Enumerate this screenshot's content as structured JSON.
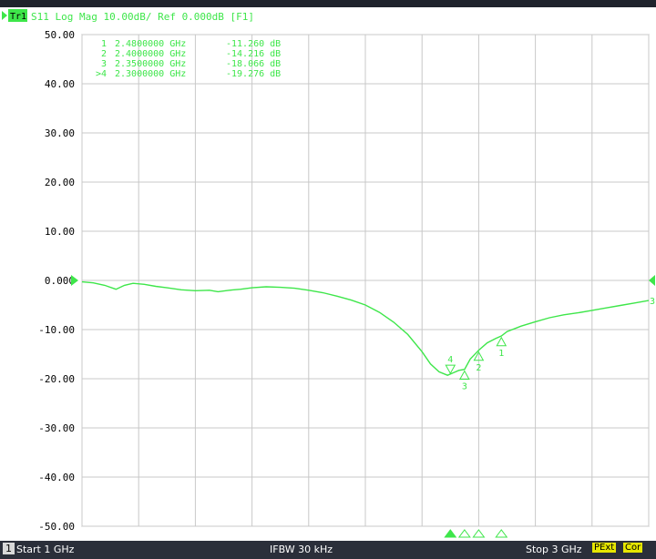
{
  "trace_header": {
    "badge": "Tr1",
    "text": "S11 Log Mag 10.00dB/ Ref 0.000dB [F1]"
  },
  "chart_data": {
    "type": "line",
    "title": "S11 Log Mag 10.00dB/ Ref 0.000dB [F1]",
    "xlabel": "",
    "ylabel": "",
    "xlim": [
      1,
      3
    ],
    "ylim": [
      -50,
      50
    ],
    "x_unit": "GHz",
    "y_unit": "dB",
    "grid": true,
    "y_ticks": [
      "50.00",
      "40.00",
      "30.00",
      "20.00",
      "10.00",
      "0.000",
      "-10.00",
      "-20.00",
      "-30.00",
      "-40.00",
      "-50.00"
    ],
    "series": [
      {
        "color": "#3ee64a",
        "x": [
          1.0,
          1.04,
          1.08,
          1.12,
          1.15,
          1.18,
          1.22,
          1.26,
          1.3,
          1.35,
          1.4,
          1.45,
          1.48,
          1.52,
          1.56,
          1.6,
          1.65,
          1.7,
          1.75,
          1.8,
          1.85,
          1.9,
          1.95,
          2.0,
          2.05,
          2.1,
          2.15,
          2.2,
          2.23,
          2.26,
          2.29,
          2.31,
          2.33,
          2.35,
          2.37,
          2.4,
          2.43,
          2.46,
          2.48,
          2.5,
          2.55,
          2.6,
          2.65,
          2.7,
          2.75,
          2.8,
          2.85,
          2.9,
          2.95,
          3.0
        ],
        "y": [
          -0.3,
          -0.5,
          -1.0,
          -1.8,
          -1.0,
          -0.6,
          -0.8,
          -1.2,
          -1.5,
          -1.9,
          -2.1,
          -2.0,
          -2.3,
          -2.0,
          -1.8,
          -1.5,
          -1.3,
          -1.4,
          -1.6,
          -2.0,
          -2.5,
          -3.2,
          -4.0,
          -5.0,
          -6.5,
          -8.5,
          -11.0,
          -14.5,
          -17.0,
          -18.6,
          -19.3,
          -18.8,
          -18.3,
          -18.1,
          -16.0,
          -14.2,
          -12.7,
          -11.8,
          -11.3,
          -10.4,
          -9.3,
          -8.4,
          -7.6,
          -7.0,
          -6.6,
          -6.1,
          -5.6,
          -5.1,
          -4.6,
          -4.1
        ]
      }
    ],
    "markers": [
      {
        "id": "1",
        "freq_text": "2.4800000 GHz",
        "value_text": "-11.260 dB",
        "x": 2.48,
        "y": -11.26,
        "active": false
      },
      {
        "id": "2",
        "freq_text": "2.4000000 GHz",
        "value_text": "-14.216 dB",
        "x": 2.4,
        "y": -14.216,
        "active": false
      },
      {
        "id": "3",
        "freq_text": "2.3500000 GHz",
        "value_text": "-18.066 dB",
        "x": 2.35,
        "y": -18.066,
        "active": false
      },
      {
        "id": "4",
        "freq_text": "2.3000000 GHz",
        "value_text": "-19.276 dB",
        "x": 2.3,
        "y": -19.276,
        "active": true
      }
    ],
    "active_marker_prefix": ">",
    "reference_level": 0,
    "right_edge_label": "3",
    "colors": {
      "trace": "#3ee64a",
      "grid": "#c8c8c8",
      "axis_text": "#000000",
      "marker_text": "#3ee64a"
    }
  },
  "status_bar": {
    "channel": "1",
    "start": "Start 1 GHz",
    "ifbw": "IFBW 30 kHz",
    "stop": "Stop 3 GHz",
    "pext": "PExt",
    "cor": "Cor"
  }
}
